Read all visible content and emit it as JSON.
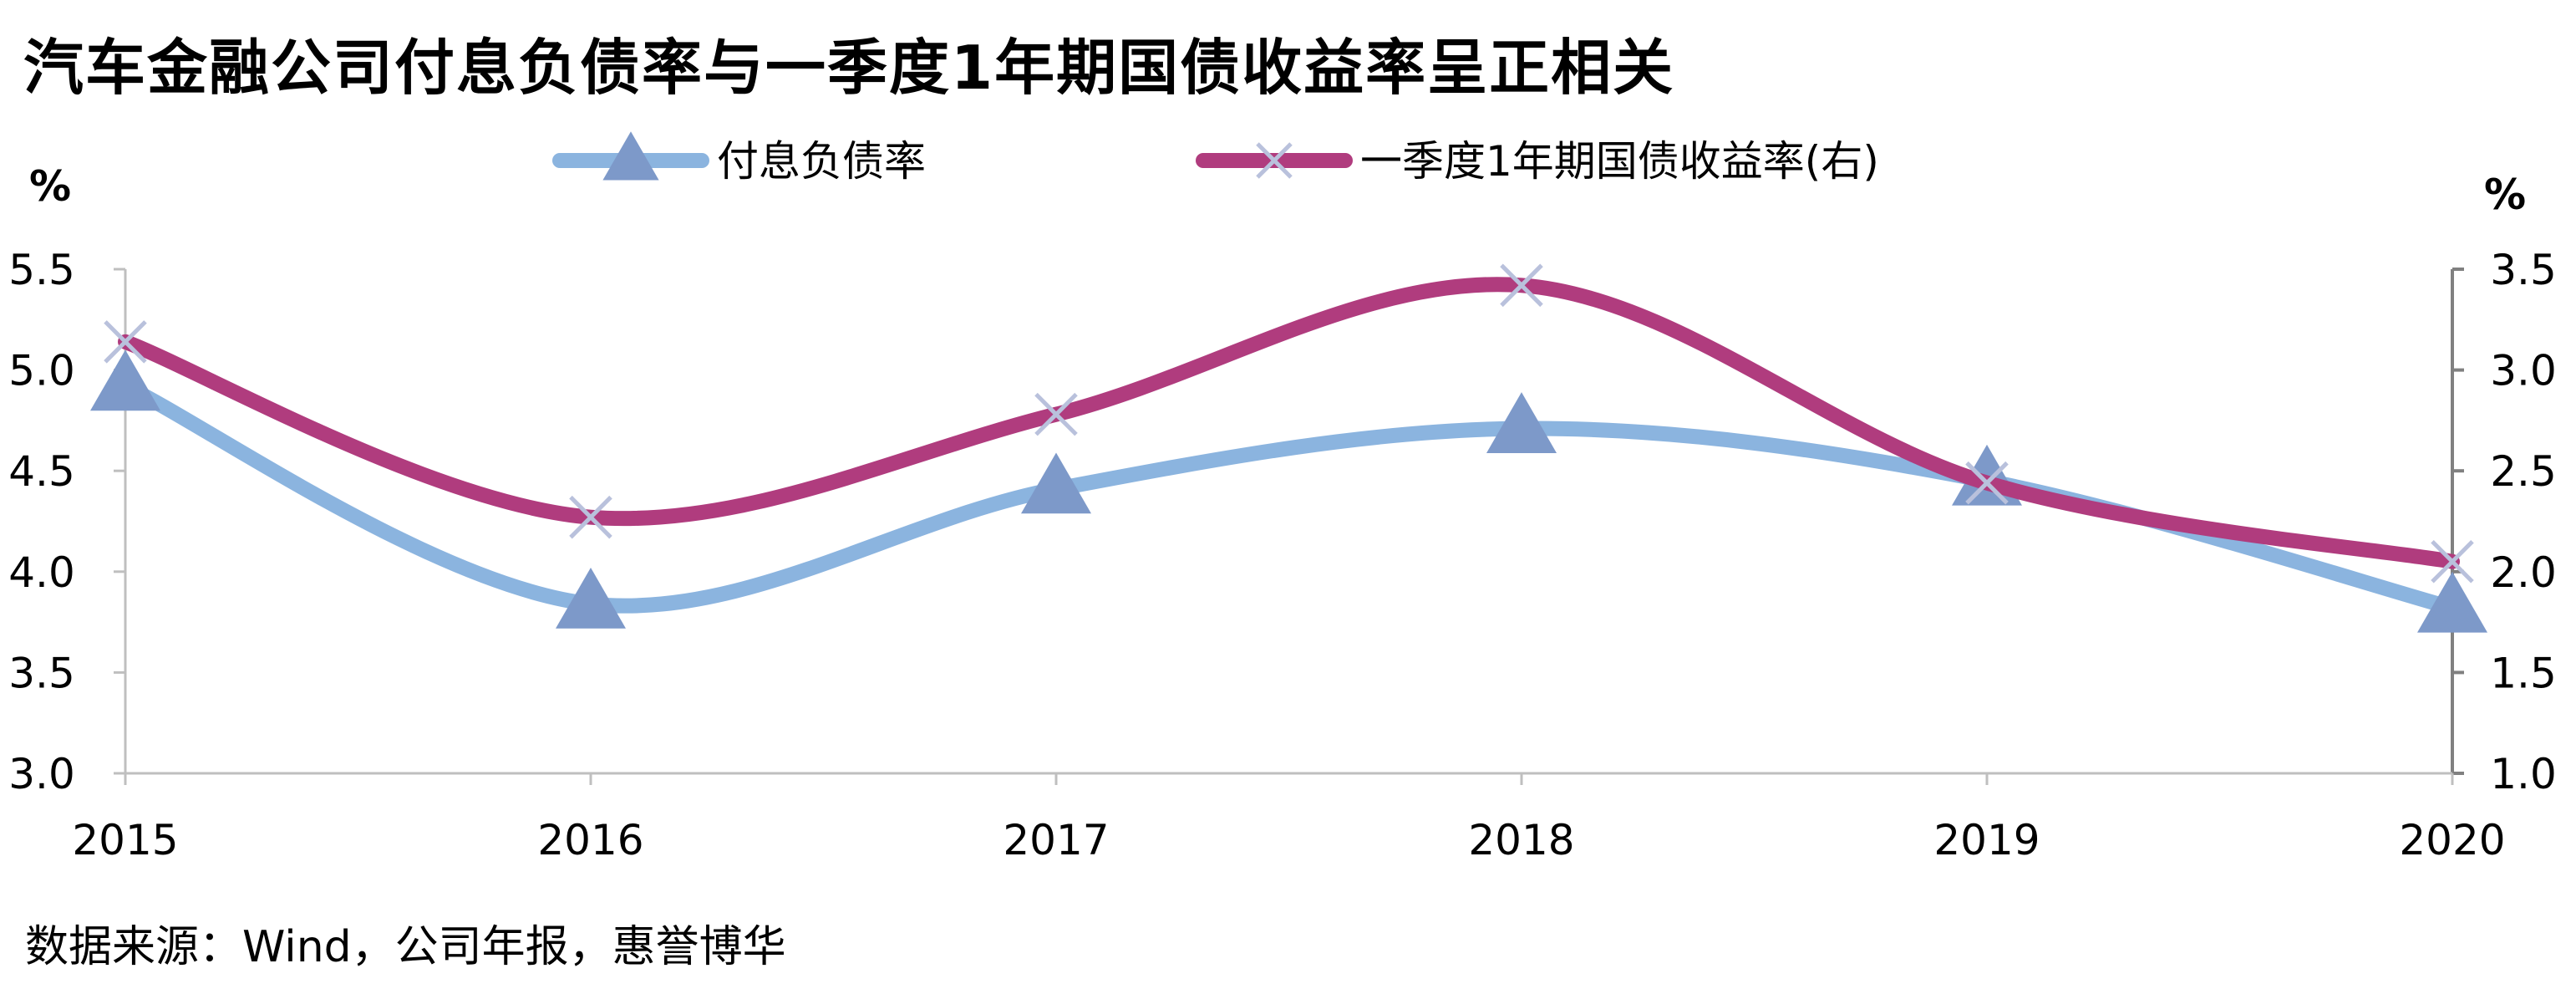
{
  "title": "汽车金融公司付息负债率与一季度1年期国债收益率呈正相关",
  "source": "数据来源：Wind，公司年报，惠誉博华",
  "chart_data": {
    "type": "line",
    "title": "汽车金融公司付息负债率与一季度1年期国债收益率呈正相关",
    "categories": [
      "2015",
      "2016",
      "2017",
      "2018",
      "2019",
      "2020"
    ],
    "left_axis": {
      "unit": "%",
      "range": [
        3.0,
        5.5
      ],
      "ticks": [
        "3.0",
        "3.5",
        "4.0",
        "4.5",
        "5.0",
        "5.5"
      ]
    },
    "right_axis": {
      "unit": "%",
      "range": [
        1.0,
        3.5
      ],
      "ticks": [
        "1.0",
        "1.5",
        "2.0",
        "2.5",
        "3.0",
        "3.5"
      ]
    },
    "series": [
      {
        "name": "付息负债率",
        "axis": "left",
        "values": [
          4.92,
          3.84,
          4.41,
          4.71,
          4.45,
          3.82
        ],
        "color": "#8BB4DF",
        "marker": "triangle",
        "marker_color": "#7D99C9"
      },
      {
        "name": "一季度1年期国债收益率(右)",
        "axis": "right",
        "values": [
          3.14,
          2.27,
          2.78,
          3.42,
          2.44,
          2.05
        ],
        "color": "#B03C7E",
        "marker": "x",
        "marker_color": "#B9C1DC"
      }
    ],
    "legend_position": "top",
    "grid": false,
    "smooth": true
  }
}
